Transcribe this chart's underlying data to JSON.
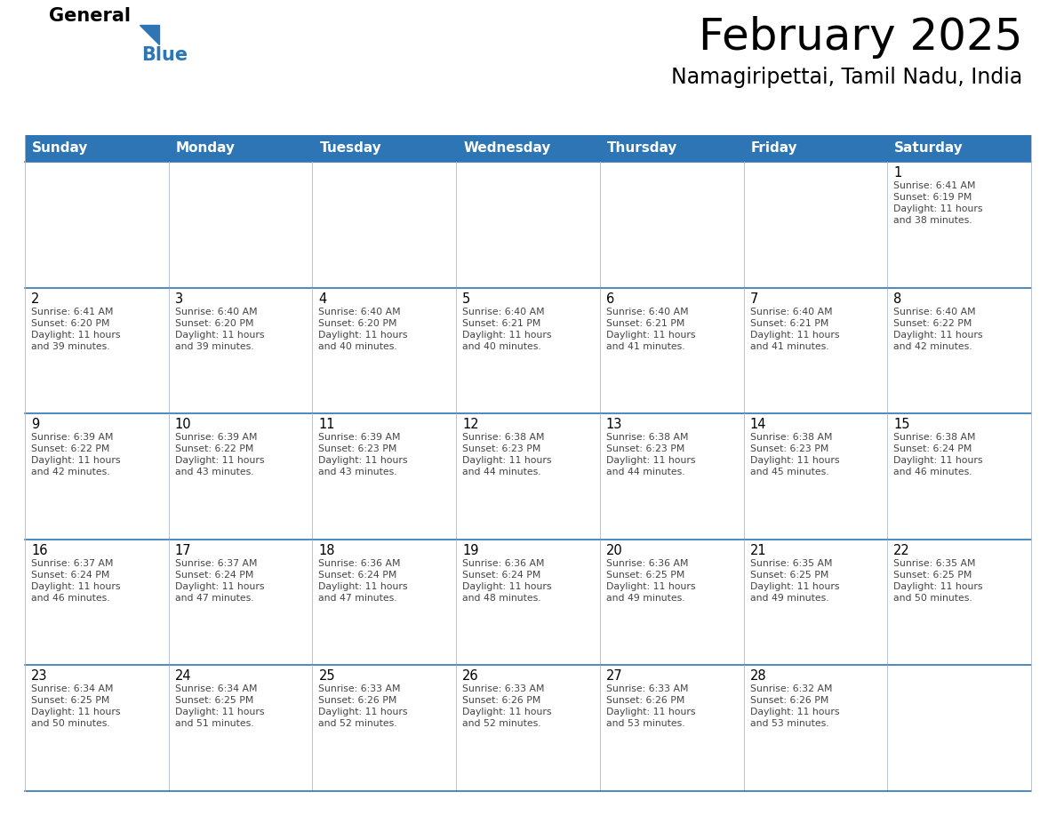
{
  "title": "February 2025",
  "subtitle": "Namagiripettai, Tamil Nadu, India",
  "header_color": "#2e75b6",
  "header_text_color": "#ffffff",
  "border_color": "#2e75b6",
  "day_names": [
    "Sunday",
    "Monday",
    "Tuesday",
    "Wednesday",
    "Thursday",
    "Friday",
    "Saturday"
  ],
  "title_color": "#000000",
  "subtitle_color": "#000000",
  "day_number_color": "#000000",
  "info_text_color": "#444444",
  "logo_general_color": "#000000",
  "logo_blue_color": "#2e75b6",
  "calendar": [
    [
      null,
      null,
      null,
      null,
      null,
      null,
      {
        "day": 1,
        "sunrise": "6:41 AM",
        "sunset": "6:19 PM",
        "daylight_hours": 11,
        "daylight_minutes": 38
      }
    ],
    [
      {
        "day": 2,
        "sunrise": "6:41 AM",
        "sunset": "6:20 PM",
        "daylight_hours": 11,
        "daylight_minutes": 39
      },
      {
        "day": 3,
        "sunrise": "6:40 AM",
        "sunset": "6:20 PM",
        "daylight_hours": 11,
        "daylight_minutes": 39
      },
      {
        "day": 4,
        "sunrise": "6:40 AM",
        "sunset": "6:20 PM",
        "daylight_hours": 11,
        "daylight_minutes": 40
      },
      {
        "day": 5,
        "sunrise": "6:40 AM",
        "sunset": "6:21 PM",
        "daylight_hours": 11,
        "daylight_minutes": 40
      },
      {
        "day": 6,
        "sunrise": "6:40 AM",
        "sunset": "6:21 PM",
        "daylight_hours": 11,
        "daylight_minutes": 41
      },
      {
        "day": 7,
        "sunrise": "6:40 AM",
        "sunset": "6:21 PM",
        "daylight_hours": 11,
        "daylight_minutes": 41
      },
      {
        "day": 8,
        "sunrise": "6:40 AM",
        "sunset": "6:22 PM",
        "daylight_hours": 11,
        "daylight_minutes": 42
      }
    ],
    [
      {
        "day": 9,
        "sunrise": "6:39 AM",
        "sunset": "6:22 PM",
        "daylight_hours": 11,
        "daylight_minutes": 42
      },
      {
        "day": 10,
        "sunrise": "6:39 AM",
        "sunset": "6:22 PM",
        "daylight_hours": 11,
        "daylight_minutes": 43
      },
      {
        "day": 11,
        "sunrise": "6:39 AM",
        "sunset": "6:23 PM",
        "daylight_hours": 11,
        "daylight_minutes": 43
      },
      {
        "day": 12,
        "sunrise": "6:38 AM",
        "sunset": "6:23 PM",
        "daylight_hours": 11,
        "daylight_minutes": 44
      },
      {
        "day": 13,
        "sunrise": "6:38 AM",
        "sunset": "6:23 PM",
        "daylight_hours": 11,
        "daylight_minutes": 44
      },
      {
        "day": 14,
        "sunrise": "6:38 AM",
        "sunset": "6:23 PM",
        "daylight_hours": 11,
        "daylight_minutes": 45
      },
      {
        "day": 15,
        "sunrise": "6:38 AM",
        "sunset": "6:24 PM",
        "daylight_hours": 11,
        "daylight_minutes": 46
      }
    ],
    [
      {
        "day": 16,
        "sunrise": "6:37 AM",
        "sunset": "6:24 PM",
        "daylight_hours": 11,
        "daylight_minutes": 46
      },
      {
        "day": 17,
        "sunrise": "6:37 AM",
        "sunset": "6:24 PM",
        "daylight_hours": 11,
        "daylight_minutes": 47
      },
      {
        "day": 18,
        "sunrise": "6:36 AM",
        "sunset": "6:24 PM",
        "daylight_hours": 11,
        "daylight_minutes": 47
      },
      {
        "day": 19,
        "sunrise": "6:36 AM",
        "sunset": "6:24 PM",
        "daylight_hours": 11,
        "daylight_minutes": 48
      },
      {
        "day": 20,
        "sunrise": "6:36 AM",
        "sunset": "6:25 PM",
        "daylight_hours": 11,
        "daylight_minutes": 49
      },
      {
        "day": 21,
        "sunrise": "6:35 AM",
        "sunset": "6:25 PM",
        "daylight_hours": 11,
        "daylight_minutes": 49
      },
      {
        "day": 22,
        "sunrise": "6:35 AM",
        "sunset": "6:25 PM",
        "daylight_hours": 11,
        "daylight_minutes": 50
      }
    ],
    [
      {
        "day": 23,
        "sunrise": "6:34 AM",
        "sunset": "6:25 PM",
        "daylight_hours": 11,
        "daylight_minutes": 50
      },
      {
        "day": 24,
        "sunrise": "6:34 AM",
        "sunset": "6:25 PM",
        "daylight_hours": 11,
        "daylight_minutes": 51
      },
      {
        "day": 25,
        "sunrise": "6:33 AM",
        "sunset": "6:26 PM",
        "daylight_hours": 11,
        "daylight_minutes": 52
      },
      {
        "day": 26,
        "sunrise": "6:33 AM",
        "sunset": "6:26 PM",
        "daylight_hours": 11,
        "daylight_minutes": 52
      },
      {
        "day": 27,
        "sunrise": "6:33 AM",
        "sunset": "6:26 PM",
        "daylight_hours": 11,
        "daylight_minutes": 53
      },
      {
        "day": 28,
        "sunrise": "6:32 AM",
        "sunset": "6:26 PM",
        "daylight_hours": 11,
        "daylight_minutes": 53
      },
      null
    ]
  ],
  "fig_width": 11.88,
  "fig_height": 9.18,
  "dpi": 100
}
